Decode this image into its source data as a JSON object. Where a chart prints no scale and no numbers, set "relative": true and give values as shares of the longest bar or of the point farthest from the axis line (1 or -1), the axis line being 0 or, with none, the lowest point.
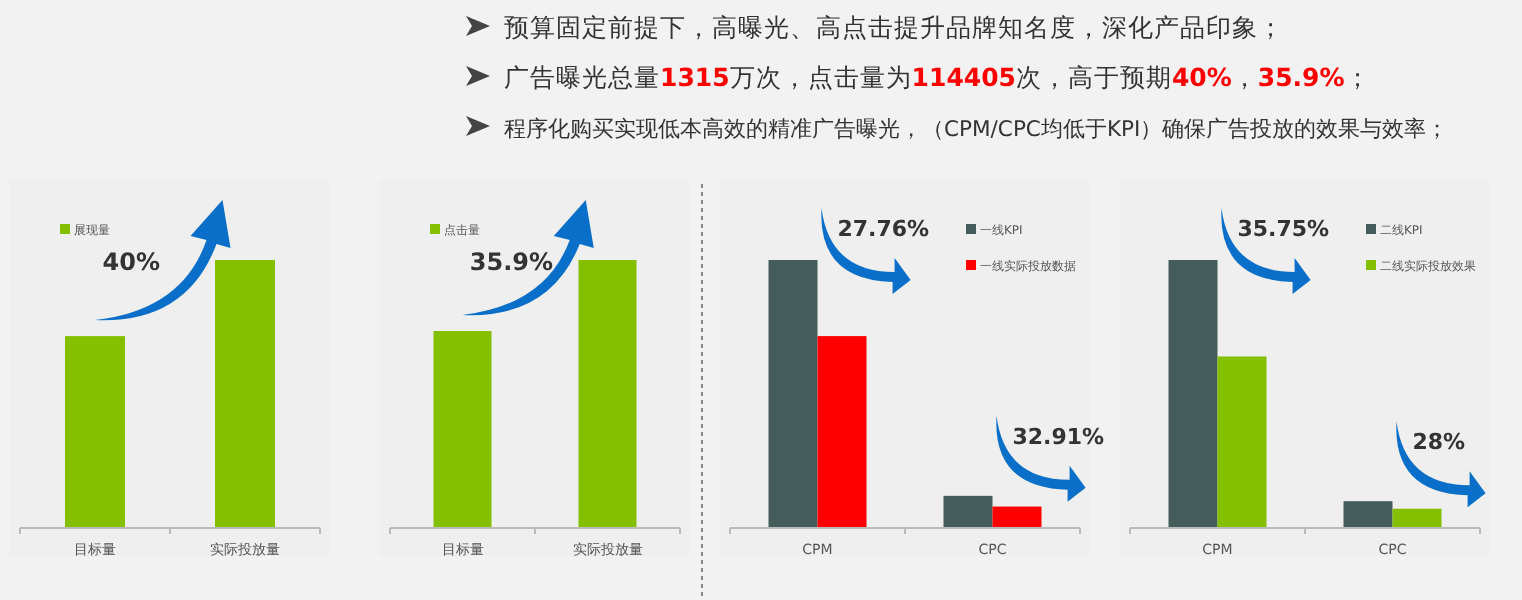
{
  "chart_data": [
    {
      "type": "other",
      "annotations": [
        "预算固定前提下，高曝光、高点击提升品牌知名度，深化产品印象；",
        "广告曝光总量1315万次，点击量为114405次，高于预期40%，35.9%；",
        "程序化购买实现低本高效的精准广告曝光，（CPM/CPC均低于KPI）确保广告投放的效果与效率；"
      ]
    },
    {
      "type": "bar",
      "relative": true,
      "categories": [
        "目标量",
        "实际投放量"
      ],
      "series": [
        {
          "name": "展现量",
          "color": "#84bf00",
          "values": [
            0.716,
            1
          ]
        }
      ],
      "legend": "top left",
      "annotations": [
        "40%"
      ]
    },
    {
      "type": "bar",
      "relative": true,
      "categories": [
        "目标量",
        "实际投放量"
      ],
      "series": [
        {
          "name": "点击量",
          "color": "#84bf00",
          "values": [
            0.735,
            1
          ]
        }
      ],
      "legend": "top left",
      "annotations": [
        "35.9%"
      ]
    },
    {
      "type": "bar",
      "relative": true,
      "categories": [
        "CPM",
        "CPC"
      ],
      "series": [
        {
          "name": "一线KPI",
          "color": "#445d5b",
          "values": [
            1,
            0.12
          ]
        },
        {
          "name": "一线实际投放数据",
          "color": "#ff0000",
          "values": [
            0.716,
            0.08
          ]
        }
      ],
      "legend": "top right",
      "annotations": [
        "27.76%",
        "32.91%"
      ]
    },
    {
      "type": "bar",
      "relative": true,
      "categories": [
        "CPM",
        "CPC"
      ],
      "series": [
        {
          "name": "二线KPI",
          "color": "#445d5b",
          "values": [
            1,
            0.1
          ]
        },
        {
          "name": "二线实际投放效果",
          "color": "#84bf00",
          "values": [
            0.64,
            0.072
          ]
        }
      ],
      "legend": "top right",
      "annotations": [
        "35.75%",
        "28%"
      ]
    }
  ]
}
